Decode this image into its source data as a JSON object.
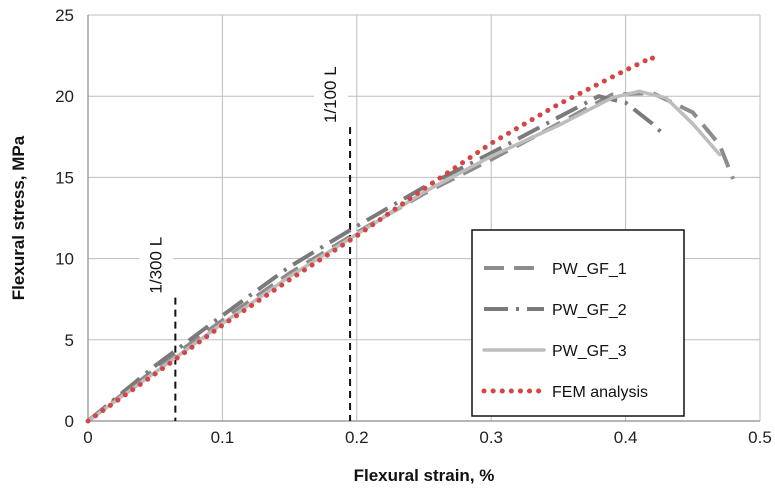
{
  "chart_data": {
    "type": "line",
    "xlabel": "Flexural strain, %",
    "ylabel": "Flexural stress, MPa",
    "xlim": [
      0,
      0.5
    ],
    "ylim": [
      0,
      25
    ],
    "x_ticks": [
      0,
      0.1,
      0.2,
      0.3,
      0.4,
      0.5
    ],
    "x_tick_labels": [
      "0",
      "0.1",
      "0.2",
      "0.3",
      "0.4",
      "0.5"
    ],
    "y_ticks": [
      0,
      5,
      10,
      15,
      20,
      25
    ],
    "y_tick_labels": [
      "0",
      "5",
      "10",
      "15",
      "20",
      "25"
    ],
    "grid": true,
    "legend_position": "bottom-right",
    "series": [
      {
        "name": "PW_GF_1",
        "color": "#8c8c8c",
        "style": "long-dash",
        "x": [
          0,
          0.05,
          0.1,
          0.15,
          0.2,
          0.25,
          0.3,
          0.35,
          0.39,
          0.42,
          0.45,
          0.47,
          0.48
        ],
        "y": [
          0,
          3.2,
          6.2,
          9.1,
          11.6,
          14.0,
          16.1,
          18.3,
          20.1,
          20.2,
          19.0,
          17.0,
          14.9
        ]
      },
      {
        "name": "PW_GF_2",
        "color": "#7a7a7a",
        "style": "dash-dot",
        "x": [
          0,
          0.05,
          0.1,
          0.15,
          0.2,
          0.25,
          0.3,
          0.35,
          0.38,
          0.4,
          0.42,
          0.43
        ],
        "y": [
          0,
          3.4,
          6.5,
          9.5,
          12.0,
          14.4,
          16.5,
          18.7,
          20.0,
          19.6,
          18.3,
          17.5
        ]
      },
      {
        "name": "PW_GF_3",
        "color": "#bdbdbd",
        "style": "solid",
        "x": [
          0,
          0.05,
          0.1,
          0.15,
          0.2,
          0.25,
          0.3,
          0.35,
          0.39,
          0.41,
          0.43,
          0.45,
          0.47
        ],
        "y": [
          0,
          3.0,
          6.0,
          8.9,
          11.5,
          14.1,
          16.3,
          18.2,
          19.9,
          20.3,
          19.9,
          18.3,
          16.4
        ]
      },
      {
        "name": "FEM analysis",
        "color": "#d64545",
        "style": "dotted",
        "x": [
          0,
          0.05,
          0.1,
          0.15,
          0.2,
          0.25,
          0.3,
          0.35,
          0.4,
          0.42,
          0.42
        ],
        "y": [
          0,
          2.9,
          5.9,
          8.7,
          11.4,
          14.3,
          17.1,
          19.5,
          21.6,
          22.4,
          21.8
        ]
      }
    ],
    "annotations": [
      {
        "label": "1/300 L",
        "x": 0.065,
        "y_top": 7.6
      },
      {
        "label": "1/100 L",
        "x": 0.195,
        "y_top": 18.1
      }
    ]
  }
}
